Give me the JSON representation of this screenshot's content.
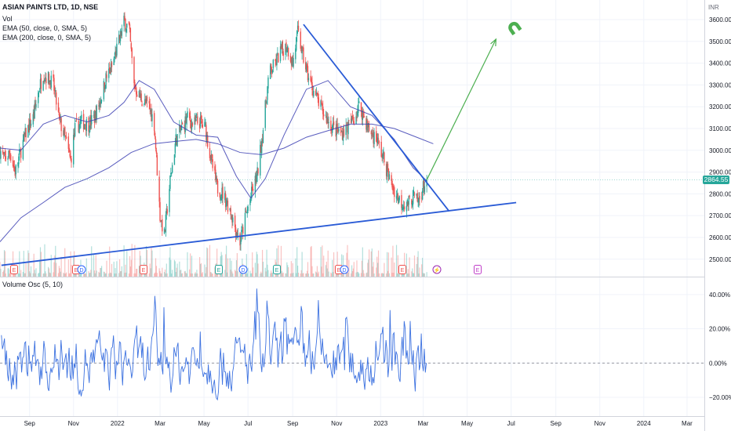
{
  "legend": {
    "title": "ASIAN PAINTS LTD, 1D, NSE",
    "vol": "Vol",
    "ema50": "EMA (50, close, 0, SMA, 5)",
    "ema200": "EMA (200, close, 0, SMA, 5)",
    "osc": "Volume Osc (5, 10)"
  },
  "currency": "INR",
  "current_price": "2864.55",
  "colors": {
    "up": "#26a69a",
    "down": "#ef5350",
    "ema": "#3c3fb3",
    "trendline": "#2a5bd6",
    "projection": "#4caf50",
    "osc": "#3d72e0",
    "badge": "#26a69a"
  },
  "icons": {
    "magnet": "magnet-icon"
  },
  "event_markers": [
    {
      "label": "E",
      "kind": "earnings-down"
    },
    {
      "label": "E",
      "kind": "earnings-down"
    },
    {
      "label": "D",
      "kind": "dividend"
    },
    {
      "label": "E",
      "kind": "earnings-down"
    },
    {
      "label": "E",
      "kind": "earnings-up"
    },
    {
      "label": "D",
      "kind": "dividend"
    },
    {
      "label": "E",
      "kind": "earnings-up"
    },
    {
      "label": "E",
      "kind": "earnings-down"
    },
    {
      "label": "D",
      "kind": "dividend"
    },
    {
      "label": "E",
      "kind": "earnings-down"
    },
    {
      "label": "⚡",
      "kind": "split"
    },
    {
      "label": "E",
      "kind": "earnings-future"
    }
  ],
  "chart_data": [
    {
      "type": "candlestick",
      "title": "ASIAN PAINTS LTD, 1D, NSE",
      "y_axis_label": "INR",
      "y_ticks": [
        2500,
        2600,
        2700,
        2800,
        2900,
        3000,
        3100,
        3200,
        3300,
        3400,
        3500,
        3600
      ],
      "y_tick_labels": [
        "2500.00",
        "2600.00",
        "2700.00",
        "2800.00",
        "2900.00",
        "3000.00",
        "3100.00",
        "3200.00",
        "3300.00",
        "3400.00",
        "3500.00",
        "3600.00"
      ],
      "ylim": [
        2420,
        3690
      ],
      "x_tick_labels": [
        "Sep",
        "Nov",
        "2022",
        "Mar",
        "May",
        "Jul",
        "Sep",
        "Nov",
        "2023",
        "Mar",
        "May",
        "Jul",
        "Sep",
        "Nov",
        "2024",
        "Mar"
      ],
      "x_ticks": [
        "2021-09-01",
        "2021-11-01",
        "2022-01-01",
        "2022-03-01",
        "2022-05-01",
        "2022-07-01",
        "2022-09-01",
        "2022-11-01",
        "2023-01-01",
        "2023-03-01",
        "2023-05-01",
        "2023-07-01",
        "2023-09-01",
        "2023-11-01",
        "2024-01-01",
        "2024-03-01"
      ],
      "xlim": [
        "2021-07-22",
        "2024-03-25"
      ],
      "price_path": [
        [
          "2021-07-22",
          3000
        ],
        [
          "2021-07-28",
          2960
        ],
        [
          "2021-08-05",
          2990
        ],
        [
          "2021-08-12",
          2900
        ],
        [
          "2021-08-20",
          3000
        ],
        [
          "2021-08-27",
          3080
        ],
        [
          "2021-09-06",
          3150
        ],
        [
          "2021-09-14",
          3280
        ],
        [
          "2021-09-20",
          3350
        ],
        [
          "2021-09-27",
          3330
        ],
        [
          "2021-10-04",
          3300
        ],
        [
          "2021-10-12",
          3140
        ],
        [
          "2021-10-20",
          3060
        ],
        [
          "2021-10-28",
          2950
        ],
        [
          "2021-11-03",
          3100
        ],
        [
          "2021-11-12",
          3130
        ],
        [
          "2021-11-22",
          3120
        ],
        [
          "2021-11-30",
          3150
        ],
        [
          "2021-12-08",
          3230
        ],
        [
          "2021-12-16",
          3330
        ],
        [
          "2021-12-24",
          3380
        ],
        [
          "2022-01-03",
          3500
        ],
        [
          "2022-01-10",
          3590
        ],
        [
          "2022-01-17",
          3560
        ],
        [
          "2022-01-24",
          3300
        ],
        [
          "2022-01-31",
          3250
        ],
        [
          "2022-02-07",
          3220
        ],
        [
          "2022-02-14",
          3200
        ],
        [
          "2022-02-21",
          3120
        ],
        [
          "2022-03-01",
          2700
        ],
        [
          "2022-03-07",
          2610
        ],
        [
          "2022-03-15",
          2860
        ],
        [
          "2022-03-23",
          3050
        ],
        [
          "2022-03-31",
          3100
        ],
        [
          "2022-04-08",
          3150
        ],
        [
          "2022-04-16",
          3120
        ],
        [
          "2022-04-25",
          3130
        ],
        [
          "2022-05-03",
          3100
        ],
        [
          "2022-05-11",
          2950
        ],
        [
          "2022-05-19",
          2830
        ],
        [
          "2022-05-27",
          2800
        ],
        [
          "2022-06-06",
          2730
        ],
        [
          "2022-06-14",
          2640
        ],
        [
          "2022-06-20",
          2580
        ],
        [
          "2022-06-28",
          2700
        ],
        [
          "2022-07-06",
          2800
        ],
        [
          "2022-07-14",
          2890
        ],
        [
          "2022-07-22",
          3100
        ],
        [
          "2022-07-30",
          3350
        ],
        [
          "2022-08-08",
          3400
        ],
        [
          "2022-08-16",
          3460
        ],
        [
          "2022-08-24",
          3480
        ],
        [
          "2022-09-01",
          3400
        ],
        [
          "2022-09-08",
          3540
        ],
        [
          "2022-09-16",
          3420
        ],
        [
          "2022-09-24",
          3320
        ],
        [
          "2022-10-03",
          3250
        ],
        [
          "2022-10-12",
          3180
        ],
        [
          "2022-10-21",
          3130
        ],
        [
          "2022-10-30",
          3090
        ],
        [
          "2022-11-08",
          3080
        ],
        [
          "2022-11-17",
          3110
        ],
        [
          "2022-11-26",
          3150
        ],
        [
          "2022-12-03",
          3210
        ],
        [
          "2022-12-10",
          3140
        ],
        [
          "2022-12-18",
          3080
        ],
        [
          "2022-12-27",
          3050
        ],
        [
          "2023-01-06",
          2950
        ],
        [
          "2023-01-14",
          2860
        ],
        [
          "2023-01-22",
          2800
        ],
        [
          "2023-01-30",
          2760
        ],
        [
          "2023-02-07",
          2750
        ],
        [
          "2023-02-15",
          2790
        ],
        [
          "2023-02-22",
          2760
        ],
        [
          "2023-03-01",
          2830
        ],
        [
          "2023-03-06",
          2864.55
        ]
      ],
      "ema50_path": [
        [
          "2021-07-22",
          3010
        ],
        [
          "2021-08-20",
          3000
        ],
        [
          "2021-09-20",
          3120
        ],
        [
          "2021-10-20",
          3160
        ],
        [
          "2021-11-20",
          3130
        ],
        [
          "2021-12-20",
          3160
        ],
        [
          "2022-01-10",
          3220
        ],
        [
          "2022-01-31",
          3320
        ],
        [
          "2022-02-21",
          3280
        ],
        [
          "2022-03-20",
          3130
        ],
        [
          "2022-04-20",
          3070
        ],
        [
          "2022-05-20",
          3060
        ],
        [
          "2022-06-15",
          2880
        ],
        [
          "2022-07-05",
          2780
        ],
        [
          "2022-07-25",
          2870
        ],
        [
          "2022-08-20",
          3070
        ],
        [
          "2022-09-20",
          3280
        ],
        [
          "2022-10-20",
          3320
        ],
        [
          "2022-11-20",
          3200
        ],
        [
          "2022-12-20",
          3160
        ],
        [
          "2023-01-20",
          3050
        ],
        [
          "2023-02-15",
          2920
        ],
        [
          "2023-03-06",
          2860
        ]
      ],
      "ema200_path": [
        [
          "2021-07-22",
          2580
        ],
        [
          "2021-08-20",
          2690
        ],
        [
          "2021-09-20",
          2760
        ],
        [
          "2021-10-20",
          2830
        ],
        [
          "2021-11-20",
          2870
        ],
        [
          "2021-12-20",
          2920
        ],
        [
          "2022-01-20",
          2990
        ],
        [
          "2022-02-20",
          3030
        ],
        [
          "2022-03-20",
          3040
        ],
        [
          "2022-04-20",
          3050
        ],
        [
          "2022-05-20",
          3030
        ],
        [
          "2022-06-20",
          2990
        ],
        [
          "2022-07-20",
          2980
        ],
        [
          "2022-08-20",
          3010
        ],
        [
          "2022-09-20",
          3060
        ],
        [
          "2022-10-20",
          3090
        ],
        [
          "2022-11-20",
          3120
        ],
        [
          "2022-12-20",
          3120
        ],
        [
          "2023-01-20",
          3100
        ],
        [
          "2023-02-20",
          3060
        ],
        [
          "2023-03-15",
          3030
        ]
      ],
      "trendlines": [
        {
          "name": "rising-support",
          "from": [
            "2021-07-24",
            2472
          ],
          "to": [
            "2023-07-08",
            2760
          ]
        },
        {
          "name": "falling-resistance",
          "from": [
            "2022-09-16",
            3578
          ],
          "to": [
            "2023-04-06",
            2720
          ]
        }
      ],
      "projection_arrow": {
        "from": [
          "2023-03-06",
          2864.55
        ],
        "to": [
          "2023-06-10",
          3510
        ]
      }
    },
    {
      "type": "line",
      "title": "Volume Osc (5, 10)",
      "y_ticks": [
        -20,
        0,
        20,
        40
      ],
      "y_tick_labels": [
        "−20.00%",
        "0.00%",
        "20.00%",
        "40.00%"
      ],
      "ylim": [
        -31,
        50
      ],
      "zero_line": true
    }
  ]
}
